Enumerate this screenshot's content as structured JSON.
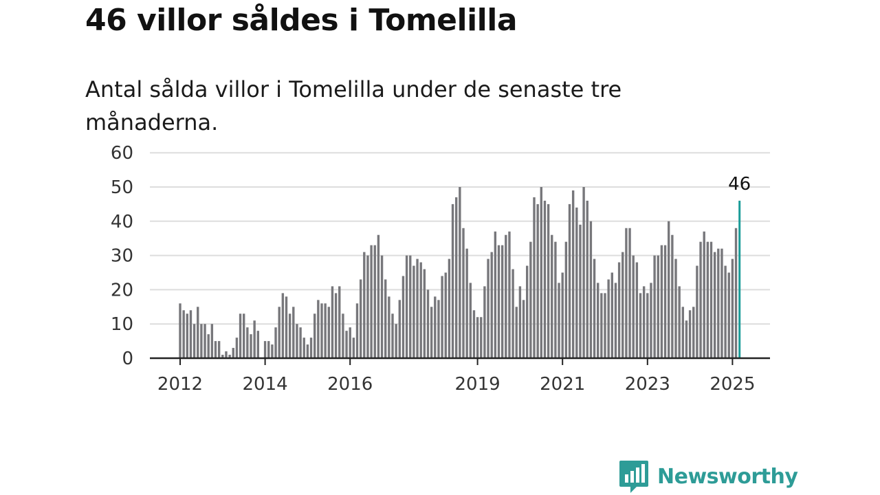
{
  "title": "46 villor såldes i Tomelilla",
  "subtitle": "Antal sålda villor i Tomelilla under de senaste tre månaderna.",
  "logo": {
    "text": "Newsworthy",
    "icon": "bar-chart-speech-bubble-icon"
  },
  "colors": {
    "bar": "#77777b",
    "highlight": "#1a9c98",
    "grid": "#dddddd",
    "axis": "#222222",
    "brand": "#2e9c97"
  },
  "chart_data": {
    "type": "bar",
    "title": "46 villor såldes i Tomelilla",
    "subtitle": "Antal sålda villor i Tomelilla under de senaste tre månaderna.",
    "xlabel": "",
    "ylabel": "",
    "ylim": [
      0,
      60
    ],
    "yticks": [
      0,
      10,
      20,
      30,
      40,
      50,
      60
    ],
    "xticks": [
      "2012",
      "2014",
      "2016",
      "2019",
      "2021",
      "2023",
      "2025"
    ],
    "grid": true,
    "legend": "none",
    "start": "2012-01",
    "end": "2025-04",
    "frequency": "monthly",
    "highlight_label": "46",
    "values": [
      16,
      14,
      13,
      14,
      10,
      15,
      10,
      10,
      7,
      10,
      5,
      5,
      1,
      2,
      1,
      3,
      6,
      13,
      13,
      9,
      7,
      11,
      8,
      0,
      5,
      5,
      4,
      9,
      15,
      19,
      18,
      13,
      15,
      10,
      9,
      6,
      4,
      6,
      13,
      17,
      16,
      16,
      15,
      21,
      19,
      21,
      13,
      8,
      9,
      6,
      16,
      23,
      31,
      30,
      33,
      33,
      36,
      30,
      23,
      18,
      13,
      10,
      17,
      24,
      30,
      30,
      27,
      29,
      28,
      26,
      20,
      15,
      18,
      17,
      24,
      25,
      29,
      45,
      47,
      50,
      38,
      32,
      22,
      14,
      12,
      12,
      21,
      29,
      31,
      37,
      33,
      33,
      36,
      37,
      26,
      15,
      21,
      17,
      27,
      34,
      47,
      45,
      50,
      46,
      45,
      36,
      34,
      22,
      25,
      34,
      45,
      49,
      44,
      39,
      50,
      46,
      40,
      29,
      22,
      19,
      19,
      23,
      25,
      22,
      28,
      31,
      38,
      38,
      30,
      28,
      19,
      21,
      19,
      22,
      30,
      30,
      33,
      33,
      40,
      36,
      29,
      21,
      15,
      11,
      14,
      15,
      27,
      34,
      37,
      34,
      34,
      31,
      32,
      32,
      27,
      25,
      29,
      38,
      46
    ]
  }
}
